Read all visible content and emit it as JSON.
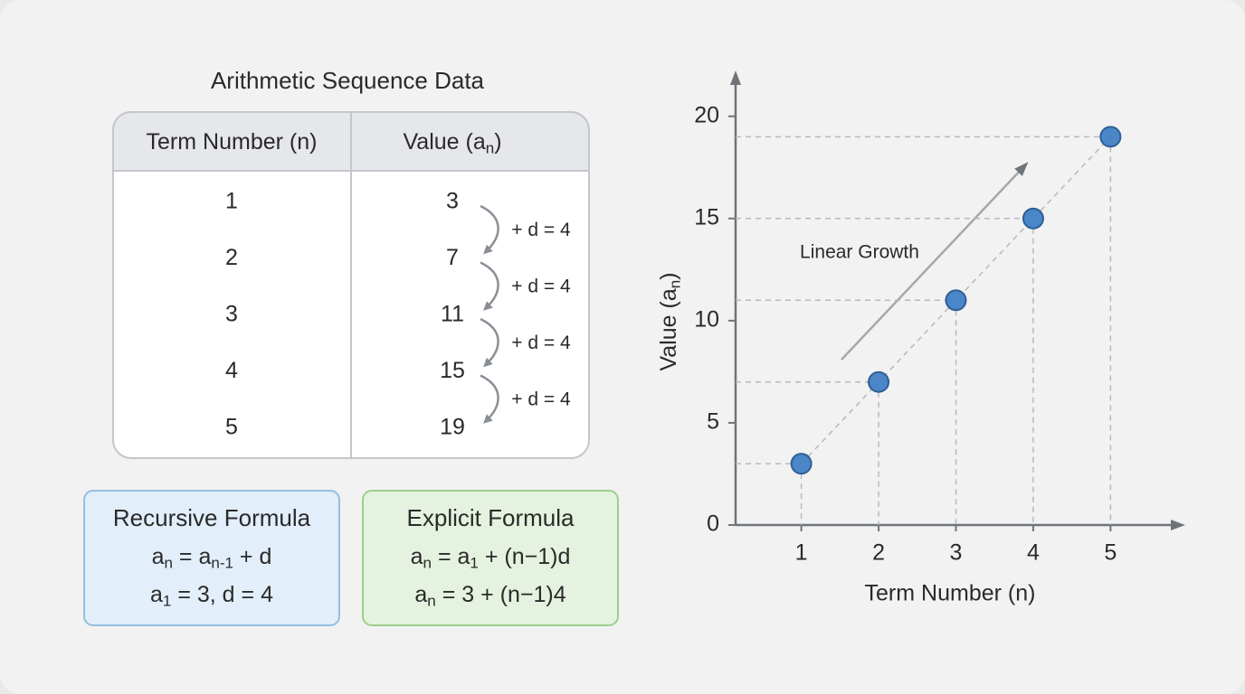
{
  "table": {
    "title": "Arithmetic Sequence Data",
    "headers": [
      [
        "Term Number (n)"
      ],
      [
        "Value (a",
        "n",
        ")"
      ]
    ],
    "terms": [
      1,
      2,
      3,
      4,
      5
    ],
    "values": [
      3,
      7,
      11,
      15,
      19
    ],
    "differences": [
      "+ d = 4",
      "+ d = 4",
      "+ d = 4",
      "+ d = 4"
    ]
  },
  "recursive": {
    "title": "Recursive Formula",
    "lines": [
      [
        "a",
        "n",
        " = a",
        "n-1",
        " + d"
      ],
      [
        "a",
        "1",
        " = 3, d = 4"
      ]
    ]
  },
  "explicit": {
    "title": "Explicit Formula",
    "lines": [
      [
        "a",
        "n",
        " = a",
        "1",
        " + (n−1)d"
      ],
      [
        "a",
        "n",
        " = 3 + (n−1)4"
      ]
    ]
  },
  "chart_data": {
    "type": "scatter",
    "x": [
      1,
      2,
      3,
      4,
      5
    ],
    "values": [
      3,
      7,
      11,
      15,
      19
    ],
    "color": "#4a86c8",
    "xlim": [
      0.15,
      5.85
    ],
    "ylim": [
      0,
      21.8
    ],
    "xticks": [
      1,
      2,
      3,
      4,
      5
    ],
    "yticks": [
      0,
      5,
      10,
      15,
      20
    ],
    "x_label": "Term Number (n)",
    "y_label": [
      "Value (a",
      "n",
      ")"
    ],
    "annotation": "Linear Growth",
    "guides": true,
    "trend_line": true
  }
}
